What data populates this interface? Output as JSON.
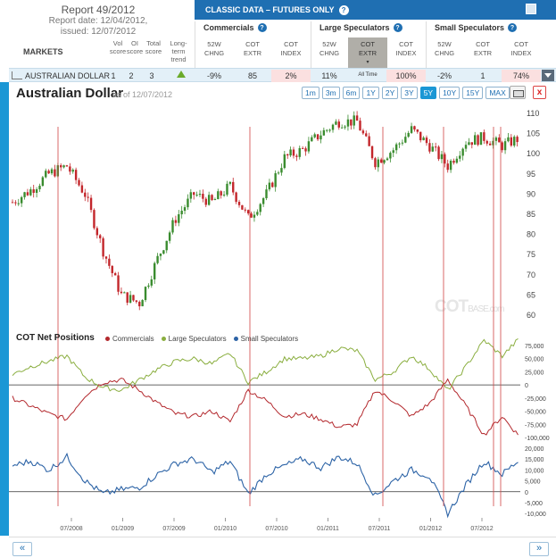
{
  "report": {
    "title": "Report 49/2012",
    "date_line": "Report date: 12/04/2012,",
    "issued_line": "issued: 12/07/2012"
  },
  "markets_label": "MARKETS",
  "score_headers": [
    {
      "line1": "Vol",
      "line2": "score"
    },
    {
      "line1": "OI",
      "line2": "score"
    },
    {
      "line1": "Total",
      "line2": "score"
    },
    {
      "line1": "Long-",
      "line2": "term trend"
    }
  ],
  "classic_bar": {
    "title": "CLASSIC DATA – FUTURES ONLY",
    "help": "?"
  },
  "groups": [
    {
      "name": "Commercials",
      "help": "?"
    },
    {
      "name": "Large Speculators",
      "help": "?"
    },
    {
      "name": "Small Speculators",
      "help": "?"
    }
  ],
  "columns": [
    {
      "l1": "52W",
      "l2": "CHNG"
    },
    {
      "l1": "COT",
      "l2": "EXTR"
    },
    {
      "l1": "COT",
      "l2": "INDEX"
    },
    {
      "l1": "52W",
      "l2": "CHNG"
    },
    {
      "l1": "COT",
      "l2": "EXTR"
    },
    {
      "l1": "COT",
      "l2": "INDEX"
    },
    {
      "l1": "52W",
      "l2": "CHNG"
    },
    {
      "l1": "COT",
      "l2": "EXTR"
    },
    {
      "l1": "COT",
      "l2": "INDEX"
    }
  ],
  "selected_column_sub": "▾",
  "row": {
    "market": "AUSTRALIAN DOLLAR",
    "vol_score": "1",
    "oi_score": "2",
    "total_score": "3",
    "com_52w": "-9%",
    "com_extr": "85",
    "com_index": "2%",
    "ls_52w": "11%",
    "ls_extr": "All Time",
    "ls_index": "100%",
    "ss_52w": "-2%",
    "ss_extr": "1",
    "ss_index": "74%"
  },
  "chart": {
    "title": "Australian Dollar",
    "as_of": "as of 12/07/2012",
    "ranges": [
      "1m",
      "3m",
      "6m",
      "1Y",
      "2Y",
      "3Y",
      "5Y",
      "10Y",
      "15Y",
      "MAX"
    ],
    "active_range": "5Y",
    "close_label": "x"
  },
  "cot_title": "COT Net Positions",
  "legend": [
    {
      "name": "Commercials",
      "color": "#b3282d"
    },
    {
      "name": "Large Speculators",
      "color": "#8aae3f"
    },
    {
      "name": "Small Speculators",
      "color": "#2c63a6"
    }
  ],
  "watermark": {
    "main": "COT",
    "sub": "BASE.com"
  },
  "footer": {
    "prev": "«",
    "next": "»"
  },
  "chart_data": [
    {
      "type": "candlestick",
      "title": "Australian Dollar",
      "ylim": [
        58,
        112
      ],
      "yticks": [
        60,
        65,
        70,
        75,
        80,
        85,
        90,
        95,
        100,
        105,
        110
      ],
      "x": [
        "2007-12",
        "2008-03",
        "2008-06",
        "2008-07",
        "2008-08",
        "2008-10",
        "2008-12",
        "2009-02",
        "2009-05",
        "2009-08",
        "2009-11",
        "2010-02",
        "2010-04",
        "2010-06",
        "2010-08",
        "2010-11",
        "2011-01",
        "2011-04",
        "2011-05",
        "2011-07",
        "2011-09",
        "2011-12",
        "2012-02",
        "2012-04",
        "2012-06",
        "2012-07",
        "2012-09",
        "2012-10",
        "2012-12"
      ],
      "close": [
        88,
        91,
        95,
        97,
        90,
        76,
        65,
        63,
        74,
        84,
        90,
        88,
        92,
        84,
        90,
        99,
        101,
        105,
        108,
        108,
        98,
        101,
        106,
        102,
        97,
        103,
        104,
        102,
        104
      ]
    },
    {
      "type": "line",
      "title": "COT Net Positions",
      "ylim": [
        -100000,
        75000
      ],
      "yticks": [
        75000,
        50000,
        25000,
        0,
        -25000,
        -50000,
        -75000,
        -100000
      ],
      "series": [
        {
          "name": "Commercials",
          "values": [
            -25000,
            -40000,
            -55000,
            -65000,
            -20000,
            5000,
            10000,
            -10000,
            -35000,
            -55000,
            -60000,
            -50000,
            -70000,
            -10000,
            -30000,
            -60000,
            -55000,
            -65000,
            -80000,
            -75000,
            -10000,
            -30000,
            -60000,
            -35000,
            10000,
            -40000,
            -95000,
            -60000,
            -100000
          ]
        },
        {
          "name": "Large Speculators",
          "values": [
            20000,
            35000,
            45000,
            55000,
            15000,
            -5000,
            -10000,
            10000,
            30000,
            45000,
            50000,
            40000,
            60000,
            5000,
            25000,
            50000,
            50000,
            55000,
            70000,
            65000,
            10000,
            25000,
            55000,
            30000,
            -10000,
            35000,
            85000,
            55000,
            90000
          ]
        },
        {
          "name": "Small Speculators",
          "values": [
            5000,
            5000,
            10000,
            10000,
            5000,
            -5000,
            0,
            0,
            5000,
            10000,
            10000,
            10000,
            10000,
            0,
            5000,
            10000,
            10000,
            10000,
            10000,
            10000,
            0,
            5000,
            5000,
            5000,
            -2000,
            5000,
            10000,
            5000,
            12000
          ]
        }
      ]
    },
    {
      "type": "line",
      "title": "Small Speculators",
      "ylim": [
        -12000,
        20000
      ],
      "yticks": [
        20000,
        15000,
        10000,
        5000,
        0,
        -5000,
        -10000
      ],
      "x_ticks": [
        "07/2008",
        "01/2009",
        "07/2009",
        "01/2010",
        "07/2010",
        "01/2011",
        "07/2011",
        "01/2012",
        "07/2012"
      ],
      "series": [
        {
          "name": "Small Speculators",
          "values": [
            12000,
            14000,
            10000,
            16000,
            5000,
            -1000,
            1000,
            2000,
            8000,
            13000,
            15000,
            9000,
            14000,
            -1000,
            8000,
            12000,
            15000,
            11000,
            16000,
            13000,
            -2000,
            5000,
            10000,
            7000,
            -10000,
            3000,
            14000,
            8000,
            15000
          ]
        }
      ]
    }
  ]
}
